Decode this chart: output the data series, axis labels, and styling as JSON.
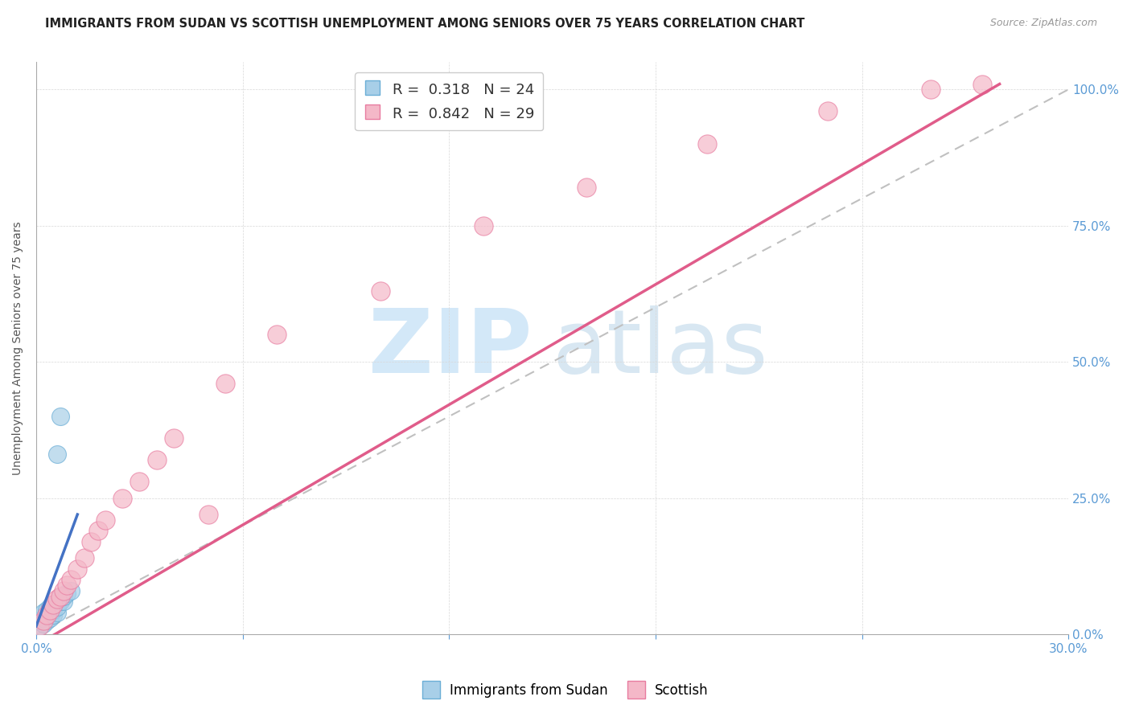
{
  "title": "IMMIGRANTS FROM SUDAN VS SCOTTISH UNEMPLOYMENT AMONG SENIORS OVER 75 YEARS CORRELATION CHART",
  "source": "Source: ZipAtlas.com",
  "ylabel_left": "Unemployment Among Seniors over 75 years",
  "x_min": 0.0,
  "x_max": 0.3,
  "y_min": 0.0,
  "y_max": 1.05,
  "r1": 0.318,
  "n1": 24,
  "r2": 0.842,
  "n2": 29,
  "color_blue": "#a8cfe8",
  "color_blue_edge": "#6baed6",
  "color_pink": "#f4b8c8",
  "color_pink_edge": "#e87ca0",
  "color_blue_line": "#4472c4",
  "color_pink_line": "#e05c8a",
  "color_ref_line": "#c0c0c0",
  "blue_x": [
    0.001,
    0.001,
    0.002,
    0.002,
    0.002,
    0.003,
    0.003,
    0.003,
    0.004,
    0.004,
    0.004,
    0.005,
    0.005,
    0.005,
    0.006,
    0.006,
    0.007,
    0.007,
    0.008,
    0.008,
    0.009,
    0.01,
    0.006,
    0.007
  ],
  "blue_y": [
    0.015,
    0.025,
    0.02,
    0.03,
    0.04,
    0.025,
    0.035,
    0.045,
    0.03,
    0.04,
    0.05,
    0.035,
    0.045,
    0.055,
    0.04,
    0.05,
    0.06,
    0.07,
    0.06,
    0.07,
    0.075,
    0.08,
    0.33,
    0.4
  ],
  "pink_x": [
    0.001,
    0.002,
    0.003,
    0.004,
    0.005,
    0.006,
    0.007,
    0.008,
    0.009,
    0.01,
    0.012,
    0.014,
    0.016,
    0.018,
    0.02,
    0.025,
    0.03,
    0.035,
    0.04,
    0.055,
    0.07,
    0.1,
    0.13,
    0.16,
    0.195,
    0.23,
    0.26,
    0.275,
    0.05
  ],
  "pink_y": [
    0.015,
    0.025,
    0.035,
    0.045,
    0.055,
    0.065,
    0.07,
    0.08,
    0.09,
    0.1,
    0.12,
    0.14,
    0.17,
    0.19,
    0.21,
    0.25,
    0.28,
    0.32,
    0.36,
    0.46,
    0.55,
    0.63,
    0.75,
    0.82,
    0.9,
    0.96,
    1.0,
    1.01,
    0.22
  ],
  "blue_line_x0": 0.0,
  "blue_line_y0": 0.015,
  "blue_line_x1": 0.012,
  "blue_line_y1": 0.22,
  "pink_line_x0": 0.0,
  "pink_line_y0": -0.02,
  "pink_line_x1": 0.28,
  "pink_line_y1": 1.01,
  "ref_line_x0": 0.0,
  "ref_line_y0": 0.0,
  "ref_line_x1": 0.3,
  "ref_line_y1": 1.0
}
